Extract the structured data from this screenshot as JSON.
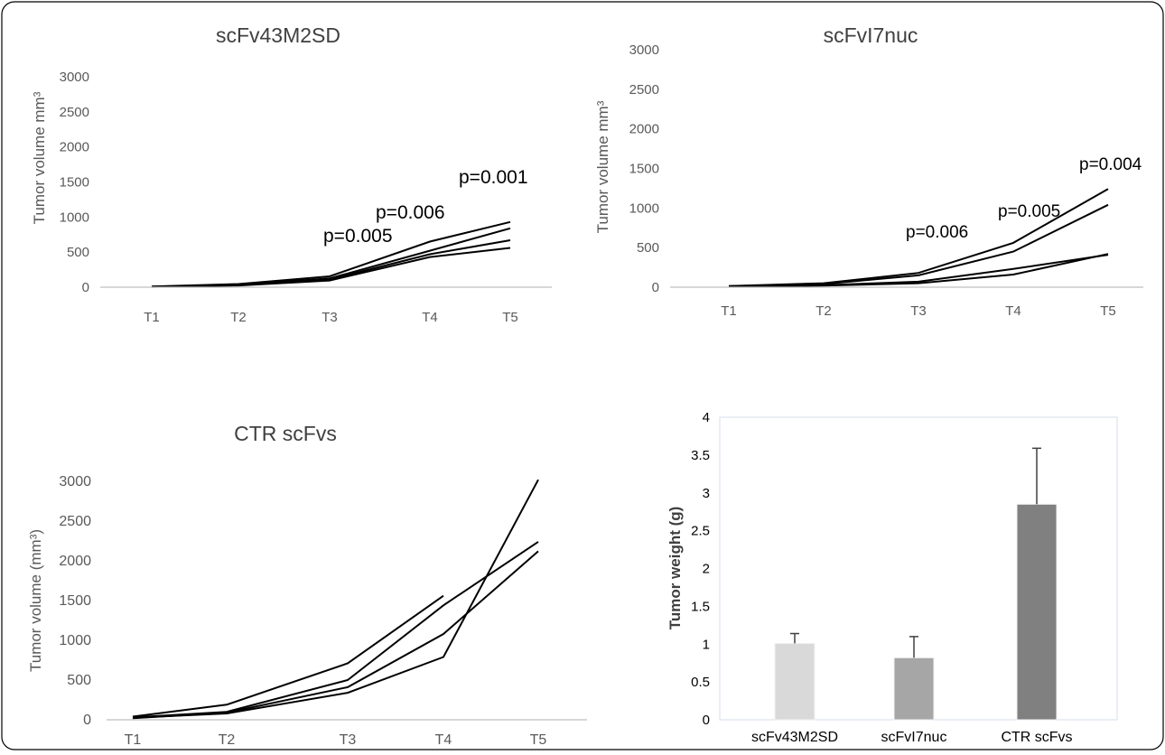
{
  "chart_data": [
    {
      "type": "line",
      "title": "scFv43M2SD",
      "ylabel": "Tumor volume mm³",
      "categories": [
        "T1",
        "T2",
        "T3",
        "T4",
        "T5"
      ],
      "ylim": [
        0,
        3000
      ],
      "yticks": [
        0,
        500,
        1000,
        1500,
        2000,
        2500,
        3000
      ],
      "series": [
        {
          "values": [
            10,
            45,
            155,
            650,
            930
          ]
        },
        {
          "values": [
            8,
            35,
            125,
            520,
            840
          ]
        },
        {
          "values": [
            6,
            30,
            110,
            470,
            670
          ]
        },
        {
          "values": [
            5,
            25,
            95,
            430,
            560
          ]
        }
      ],
      "annotations": [
        {
          "text": "p=0.005"
        },
        {
          "text": "p=0.006"
        },
        {
          "text": "p=0.001"
        }
      ]
    },
    {
      "type": "line",
      "title": "scFvI7nuc",
      "ylabel": "Tumor volume mm³",
      "categories": [
        "T1",
        "T2",
        "T3",
        "T4",
        "T5"
      ],
      "ylim": [
        0,
        3000
      ],
      "yticks": [
        0,
        500,
        1000,
        1500,
        2000,
        2500,
        3000
      ],
      "series": [
        {
          "values": [
            15,
            50,
            180,
            560,
            1240
          ]
        },
        {
          "values": [
            12,
            40,
            150,
            450,
            1040
          ]
        },
        {
          "values": [
            10,
            25,
            70,
            230,
            410
          ]
        },
        {
          "values": [
            8,
            20,
            50,
            160,
            420
          ]
        }
      ],
      "annotations": [
        {
          "text": "p=0.006"
        },
        {
          "text": "p=0.005"
        },
        {
          "text": "p=0.004"
        }
      ]
    },
    {
      "type": "line",
      "title": "CTR scFvs",
      "ylabel": "Tumor volume (mm³)",
      "categories": [
        "T1",
        "T2",
        "T3",
        "T4",
        "T5"
      ],
      "ylim": [
        0,
        3000
      ],
      "yticks": [
        0,
        500,
        1000,
        1500,
        2000,
        2500,
        3000
      ],
      "series": [
        {
          "values": [
            40,
            190,
            710,
            1560,
            null
          ]
        },
        {
          "values": [
            30,
            100,
            500,
            1440,
            2240
          ]
        },
        {
          "values": [
            20,
            90,
            410,
            1080,
            2120
          ]
        },
        {
          "values": [
            25,
            80,
            340,
            790,
            3020
          ]
        }
      ]
    },
    {
      "type": "bar",
      "title": "",
      "ylabel": "Tumor weight (g)",
      "categories": [
        "scFv43M2SD",
        "scFvI7nuc",
        "CTR scFvs"
      ],
      "values": [
        1.01,
        0.82,
        2.85
      ],
      "errors": [
        0.13,
        0.28,
        0.74
      ],
      "colors": [
        "#d9d9d9",
        "#a6a6a6",
        "#808080"
      ],
      "ylim": [
        0,
        4
      ],
      "yticks": [
        "0",
        "0.5",
        "1",
        "1.5",
        "2",
        "2.5",
        "3",
        "3.5",
        "4"
      ]
    }
  ]
}
